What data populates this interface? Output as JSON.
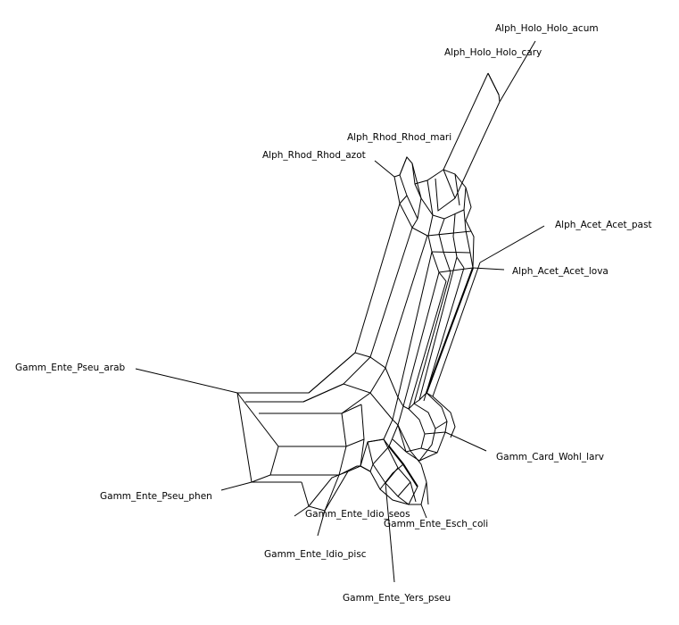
{
  "network": {
    "taxa": [
      {
        "id": "holo_acum",
        "label": "Alph_Holo_Holo_acum"
      },
      {
        "id": "holo_cary",
        "label": "Alph_Holo_Holo_cary"
      },
      {
        "id": "rhod_mari",
        "label": "Alph_Rhod_Rhod_mari"
      },
      {
        "id": "rhod_azot",
        "label": "Alph_Rhod_Rhod_azot"
      },
      {
        "id": "acet_past",
        "label": "Alph_Acet_Acet_past"
      },
      {
        "id": "acet_lova",
        "label": "Alph_Acet_Acet_lova"
      },
      {
        "id": "pseu_arab",
        "label": "Gamm_Ente_Pseu_arab"
      },
      {
        "id": "wohl_larv",
        "label": "Gamm_Card_Wohl_larv"
      },
      {
        "id": "pseu_phen",
        "label": "Gamm_Ente_Pseu_phen"
      },
      {
        "id": "idio_seos",
        "label": "Gamm_Ente_Idio_seos"
      },
      {
        "id": "esch_coli",
        "label": "Gamm_Ente_Esch_coli"
      },
      {
        "id": "idio_pisc",
        "label": "Gamm_Ente_Idio_pisc"
      },
      {
        "id": "yers_pseu",
        "label": "Gamm_Ente_Yers_pseu"
      }
    ],
    "colors": {
      "line": "#000000",
      "background": "#ffffff"
    }
  }
}
